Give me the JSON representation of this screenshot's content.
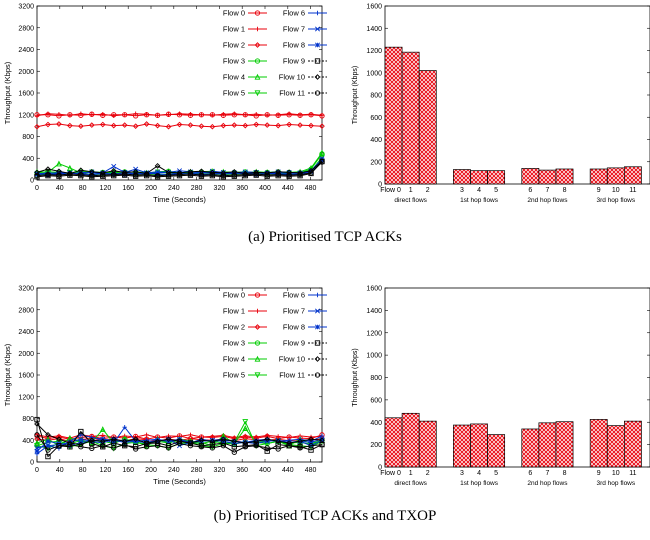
{
  "chart_data": [
    {
      "panel": "a",
      "type": "line",
      "xlabel": "Time (Seconds)",
      "ylabel": "Throughput (Kbps)",
      "xlim": [
        0,
        500
      ],
      "ylim": [
        0,
        3200
      ],
      "xticks": [
        0,
        40,
        80,
        120,
        160,
        200,
        240,
        280,
        320,
        360,
        400,
        440,
        480
      ],
      "yticks": [
        0,
        400,
        800,
        1200,
        1600,
        2000,
        2400,
        2800,
        3200
      ],
      "legend": "top-right",
      "series": [
        {
          "name": "Flow 0",
          "color": "#e8000b",
          "marker": "circle",
          "values": [
            1200,
            1200,
            1180,
            1200,
            1190,
            1210,
            1190,
            1200,
            1200,
            1180,
            1200,
            1190,
            1210,
            1200,
            1190,
            1200,
            1200,
            1190,
            1200,
            1200,
            1180,
            1200,
            1190,
            1200,
            1190,
            1200,
            1180
          ]
        },
        {
          "name": "Flow 1",
          "color": "#e8000b",
          "marker": "plus",
          "values": [
            1180,
            1220,
            1210,
            1190,
            1220,
            1200,
            1210,
            1180,
            1200,
            1220,
            1210,
            1190,
            1200,
            1220,
            1210,
            1200,
            1190,
            1210,
            1220,
            1200,
            1210,
            1190,
            1200,
            1220,
            1200,
            1210,
            1190
          ]
        },
        {
          "name": "Flow 2",
          "color": "#e8000b",
          "marker": "diamond",
          "values": [
            980,
            1020,
            1030,
            1000,
            990,
            1010,
            1020,
            1000,
            1010,
            990,
            1030,
            1000,
            980,
            1020,
            1010,
            990,
            980,
            1000,
            1010,
            1000,
            1020,
            1010,
            1000,
            1020,
            1010,
            1000,
            990
          ]
        },
        {
          "name": "Flow 3",
          "color": "#00cc00",
          "marker": "circle",
          "values": [
            130,
            150,
            140,
            120,
            160,
            150,
            140,
            130,
            150,
            140,
            120,
            150,
            160,
            130,
            140,
            150,
            160,
            130,
            140,
            150,
            130,
            140,
            150,
            140,
            130,
            200,
            480
          ]
        },
        {
          "name": "Flow 4",
          "color": "#00cc00",
          "marker": "triangle",
          "values": [
            150,
            140,
            300,
            220,
            130,
            140,
            130,
            150,
            140,
            150,
            130,
            140,
            150,
            130,
            150,
            140,
            130,
            150,
            140,
            130,
            150,
            140,
            130,
            140,
            150,
            220,
            500
          ]
        },
        {
          "name": "Flow 5",
          "color": "#00cc00",
          "marker": "triangle-down",
          "values": [
            100,
            120,
            110,
            130,
            120,
            100,
            110,
            120,
            130,
            110,
            120,
            100,
            110,
            120,
            130,
            110,
            120,
            100,
            110,
            120,
            130,
            110,
            120,
            110,
            120,
            160,
            420
          ]
        },
        {
          "name": "Flow 6",
          "color": "#0033cc",
          "marker": "plus",
          "values": [
            110,
            130,
            120,
            100,
            140,
            130,
            120,
            110,
            130,
            120,
            110,
            130,
            140,
            110,
            120,
            130,
            140,
            110,
            120,
            130,
            110,
            120,
            130,
            120,
            110,
            150,
            380
          ]
        },
        {
          "name": "Flow 7",
          "color": "#0033cc",
          "marker": "x",
          "values": [
            120,
            110,
            140,
            130,
            110,
            150,
            130,
            250,
            140,
            200,
            130,
            150,
            140,
            170,
            150,
            130,
            160,
            140,
            130,
            150,
            140,
            130,
            150,
            140,
            130,
            170,
            390
          ]
        },
        {
          "name": "Flow 8",
          "color": "#0033cc",
          "marker": "asterisk",
          "values": [
            100,
            90,
            120,
            130,
            110,
            100,
            120,
            110,
            100,
            120,
            130,
            110,
            100,
            120,
            110,
            100,
            120,
            110,
            130,
            110,
            100,
            120,
            110,
            100,
            120,
            150,
            360
          ]
        },
        {
          "name": "Flow 9",
          "color": "#000000",
          "marker": "square",
          "values": [
            60,
            80,
            70,
            90,
            80,
            60,
            70,
            80,
            90,
            70,
            80,
            60,
            70,
            80,
            90,
            70,
            80,
            60,
            70,
            80,
            90,
            70,
            80,
            70,
            80,
            120,
            340
          ]
        },
        {
          "name": "Flow 10",
          "color": "#000000",
          "marker": "diamond",
          "values": [
            140,
            200,
            160,
            120,
            180,
            150,
            130,
            170,
            140,
            150,
            120,
            260,
            140,
            130,
            150,
            160,
            140,
            130,
            150,
            120,
            140,
            130,
            150,
            140,
            130,
            170,
            350
          ]
        },
        {
          "name": "Flow 11",
          "color": "#000000",
          "marker": "circle",
          "values": [
            80,
            100,
            90,
            110,
            100,
            80,
            90,
            100,
            110,
            90,
            100,
            80,
            90,
            100,
            110,
            90,
            100,
            80,
            90,
            100,
            110,
            90,
            100,
            90,
            100,
            130,
            330
          ]
        }
      ]
    },
    {
      "panel": "a",
      "type": "bar",
      "ylabel": "Throughput (Kbps)",
      "ylim": [
        0,
        1600
      ],
      "yticks": [
        0,
        200,
        400,
        600,
        800,
        1000,
        1200,
        1400,
        1600
      ],
      "categories": [
        "Flow 0",
        "1",
        "2",
        "3",
        "4",
        "5",
        "6",
        "7",
        "8",
        "9",
        "10",
        "11"
      ],
      "values": [
        1230,
        1185,
        1020,
        130,
        120,
        120,
        140,
        125,
        135,
        135,
        145,
        155
      ],
      "groups": [
        "direct flows",
        "1st hop flows",
        "2nd hop flows",
        "3rd hop flows"
      ]
    },
    {
      "panel": "b",
      "type": "line",
      "xlabel": "Time (Seconds)",
      "ylabel": "Throughput (Kbps)",
      "xlim": [
        0,
        500
      ],
      "ylim": [
        0,
        3200
      ],
      "xticks": [
        0,
        40,
        80,
        120,
        160,
        200,
        240,
        280,
        320,
        360,
        400,
        440,
        480
      ],
      "yticks": [
        0,
        400,
        800,
        1200,
        1600,
        2000,
        2400,
        2800,
        3200
      ],
      "legend": "top-right",
      "series": [
        {
          "name": "Flow 0",
          "color": "#e8000b",
          "marker": "circle",
          "values": [
            480,
            430,
            460,
            420,
            450,
            470,
            430,
            460,
            440,
            470,
            420,
            460,
            440,
            480,
            430,
            460,
            450,
            470,
            430,
            460,
            440,
            470,
            430,
            460,
            440,
            430,
            500
          ]
        },
        {
          "name": "Flow 1",
          "color": "#e8000b",
          "marker": "plus",
          "values": [
            500,
            460,
            480,
            440,
            500,
            470,
            490,
            450,
            480,
            460,
            500,
            450,
            480,
            470,
            500,
            460,
            470,
            490,
            450,
            480,
            460,
            490,
            470,
            450,
            480,
            460,
            470
          ]
        },
        {
          "name": "Flow 2",
          "color": "#e8000b",
          "marker": "diamond",
          "values": [
            420,
            400,
            430,
            380,
            410,
            440,
            400,
            420,
            390,
            430,
            410,
            390,
            420,
            400,
            430,
            410,
            400,
            420,
            390,
            430,
            410,
            400,
            420,
            390,
            410,
            400,
            430
          ]
        },
        {
          "name": "Flow 3",
          "color": "#00cc00",
          "marker": "circle",
          "values": [
            300,
            360,
            380,
            330,
            400,
            350,
            380,
            340,
            420,
            360,
            330,
            380,
            350,
            400,
            360,
            340,
            380,
            350,
            330,
            370,
            360,
            340,
            380,
            350,
            360,
            330,
            400
          ]
        },
        {
          "name": "Flow 4",
          "color": "#00cc00",
          "marker": "triangle",
          "values": [
            350,
            420,
            300,
            440,
            380,
            360,
            600,
            350,
            420,
            380,
            300,
            420,
            350,
            420,
            380,
            360,
            300,
            480,
            340,
            620,
            350,
            400,
            380,
            300,
            420,
            340,
            400
          ]
        },
        {
          "name": "Flow 5",
          "color": "#00cc00",
          "marker": "triangle-down",
          "values": [
            300,
            250,
            350,
            280,
            330,
            380,
            300,
            250,
            340,
            360,
            320,
            300,
            260,
            340,
            360,
            300,
            280,
            340,
            360,
            740,
            300,
            340,
            380,
            320,
            300,
            280,
            380
          ]
        },
        {
          "name": "Flow 6",
          "color": "#0033cc",
          "marker": "plus",
          "values": [
            150,
            300,
            250,
            380,
            500,
            450,
            420,
            350,
            640,
            380,
            400,
            420,
            380,
            400,
            350,
            420,
            380,
            400,
            380,
            360,
            400,
            420,
            380,
            400,
            420,
            380,
            480
          ]
        },
        {
          "name": "Flow 7",
          "color": "#0033cc",
          "marker": "x",
          "values": [
            260,
            300,
            320,
            360,
            420,
            380,
            350,
            420,
            380,
            400,
            340,
            380,
            420,
            300,
            360,
            380,
            400,
            420,
            380,
            360,
            340,
            380,
            400,
            360,
            380,
            300,
            400
          ]
        },
        {
          "name": "Flow 8",
          "color": "#0033cc",
          "marker": "asterisk",
          "values": [
            200,
            380,
            340,
            300,
            360,
            380,
            420,
            400,
            360,
            380,
            360,
            400,
            380,
            420,
            360,
            380,
            400,
            380,
            340,
            360,
            380,
            400,
            380,
            360,
            380,
            360,
            420
          ]
        },
        {
          "name": "Flow 9",
          "color": "#000000",
          "marker": "square",
          "values": [
            780,
            100,
            300,
            280,
            560,
            340,
            280,
            350,
            300,
            280,
            340,
            350,
            300,
            380,
            350,
            300,
            320,
            350,
            280,
            300,
            320,
            200,
            320,
            300,
            280,
            220,
            320
          ]
        },
        {
          "name": "Flow 10",
          "color": "#000000",
          "marker": "diamond",
          "values": [
            700,
            500,
            420,
            350,
            320,
            400,
            380,
            420,
            380,
            420,
            350,
            380,
            420,
            380,
            350,
            400,
            380,
            420,
            380,
            350,
            380,
            420,
            380,
            350,
            380,
            420,
            400
          ]
        },
        {
          "name": "Flow 11",
          "color": "#000000",
          "marker": "circle",
          "values": [
            500,
            220,
            300,
            320,
            280,
            250,
            300,
            260,
            320,
            240,
            280,
            300,
            260,
            340,
            300,
            280,
            260,
            300,
            180,
            280,
            300,
            260,
            240,
            300,
            260,
            300,
            320
          ]
        }
      ]
    },
    {
      "panel": "b",
      "type": "bar",
      "ylabel": "Throughput (Kbps)",
      "ylim": [
        0,
        1600
      ],
      "yticks": [
        0,
        200,
        400,
        600,
        800,
        1000,
        1200,
        1400,
        1600
      ],
      "categories": [
        "Flow 0",
        "1",
        "2",
        "3",
        "4",
        "5",
        "6",
        "7",
        "8",
        "9",
        "10",
        "11"
      ],
      "values": [
        440,
        480,
        410,
        375,
        385,
        290,
        340,
        395,
        405,
        425,
        370,
        410
      ],
      "groups": [
        "direct flows",
        "1st hop flows",
        "2nd hop flows",
        "3rd hop flows"
      ]
    }
  ],
  "captions": {
    "a": "(a) Prioritised TCP ACKs",
    "b": "(b) Prioritised TCP ACKs and TXOP"
  }
}
